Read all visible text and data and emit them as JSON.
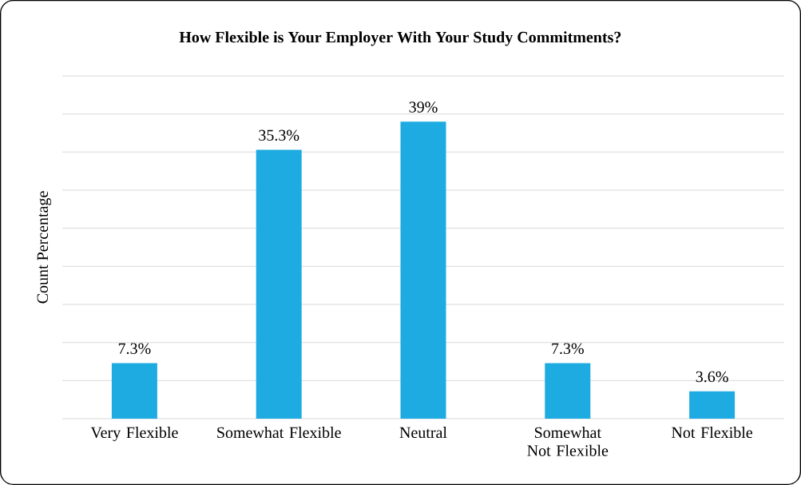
{
  "chart_data": {
    "type": "bar",
    "title": "How Flexible is Your Employer With Your Study Commitments?",
    "ylabel": "Count Percentage",
    "categories": [
      "Very Flexible",
      "Somewhat Flexible",
      "Neutral",
      "Somewhat Not Flexible",
      "Not Flexible"
    ],
    "values": [
      7.3,
      35.3,
      39,
      7.3,
      3.6
    ],
    "value_labels": [
      "7.3%",
      "35.3%",
      "39%",
      "7.3%",
      "3.6%"
    ],
    "color": "#1eabe2",
    "ylim": [
      0,
      45
    ],
    "yticks": [
      0,
      5,
      10,
      15,
      20,
      25,
      30,
      35,
      40,
      45
    ],
    "tick_labels": "x",
    "grid": "y"
  }
}
